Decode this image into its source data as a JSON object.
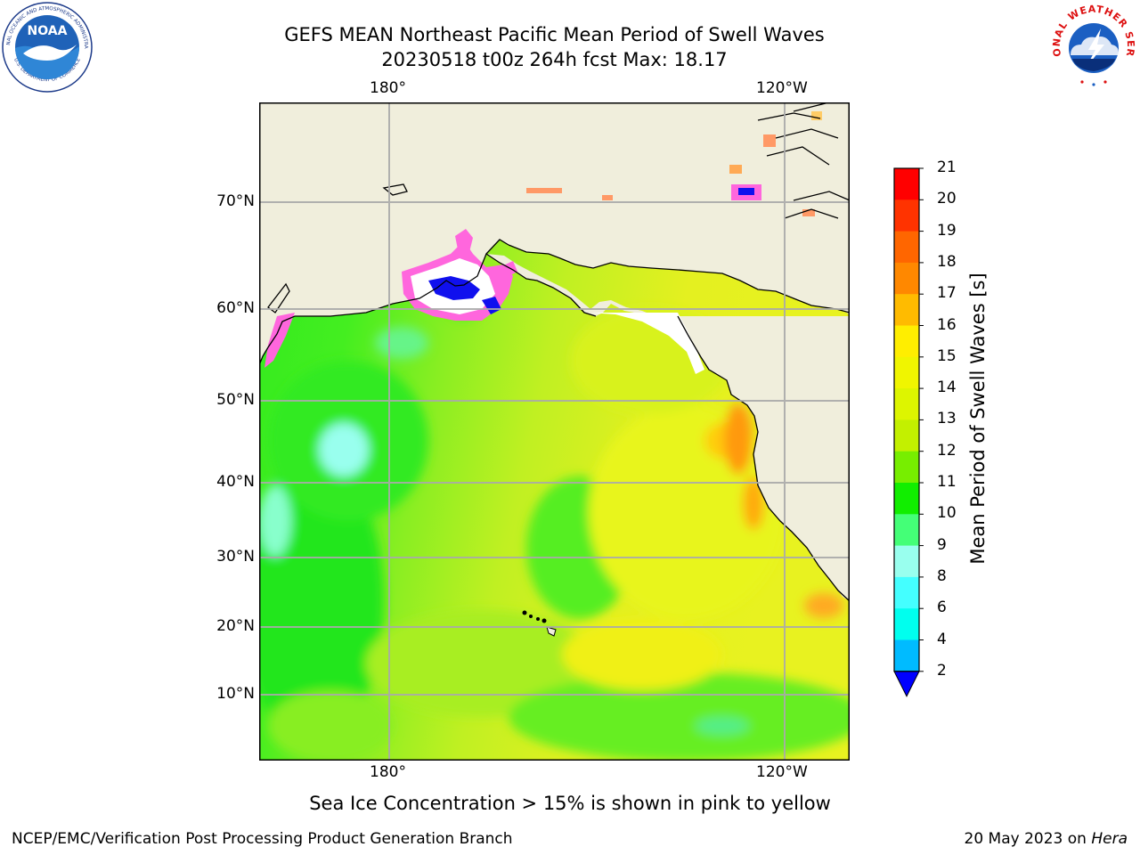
{
  "title": {
    "line1": "GEFS MEAN Northeast Pacific Mean Period of Swell Waves",
    "line2": "20230518 t00z 264h fcst   Max: 18.17"
  },
  "map": {
    "lon_labels": [
      "180°",
      "120°W"
    ],
    "lat_labels": [
      "70°N",
      "60°N",
      "50°N",
      "40°N",
      "30°N",
      "20°N",
      "10°N"
    ],
    "colors": {
      "land": "#f0eedc",
      "ocean_green": "#33ee22",
      "ocean_lime": "#99ee22",
      "ocean_yellow": "#e6f020",
      "ocean_orange": "#ffaa11",
      "ice_pink": "#ff66dd",
      "ice_blue": "#1010ee"
    }
  },
  "colorbar": {
    "label": "Mean Period of Swell Waves [s]",
    "ticks": [
      "21",
      "20",
      "19",
      "18",
      "17",
      "16",
      "15",
      "14",
      "13",
      "12",
      "11",
      "10",
      "9",
      "8",
      "6",
      "4",
      "2"
    ],
    "colors": [
      "#ff0000",
      "#ff3300",
      "#ff6600",
      "#ff8800",
      "#ffbb00",
      "#ffee00",
      "#f0f500",
      "#ddf500",
      "#c3f000",
      "#77ee00",
      "#11ee00",
      "#44ff77",
      "#99ffee",
      "#44ffff",
      "#00ffee",
      "#00bbff",
      "#0066ff"
    ],
    "arrow_color": "#0000ff"
  },
  "subtitle": "Sea Ice Concentration > 15% is shown in pink to yellow",
  "footer": {
    "credit": "NCEP/EMC/Verification Post Processing Product Generation Branch",
    "date": "20 May 2023 on",
    "host": "Hera"
  },
  "logos": {
    "left": "NOAA",
    "left_ring": "NATIONAL OCEANIC AND ATMOSPHERIC ADMINISTRATION",
    "left_ring_bottom": "U.S. DEPARTMENT OF COMMERCE",
    "right_ring": "NATIONAL WEATHER SERVICE"
  }
}
